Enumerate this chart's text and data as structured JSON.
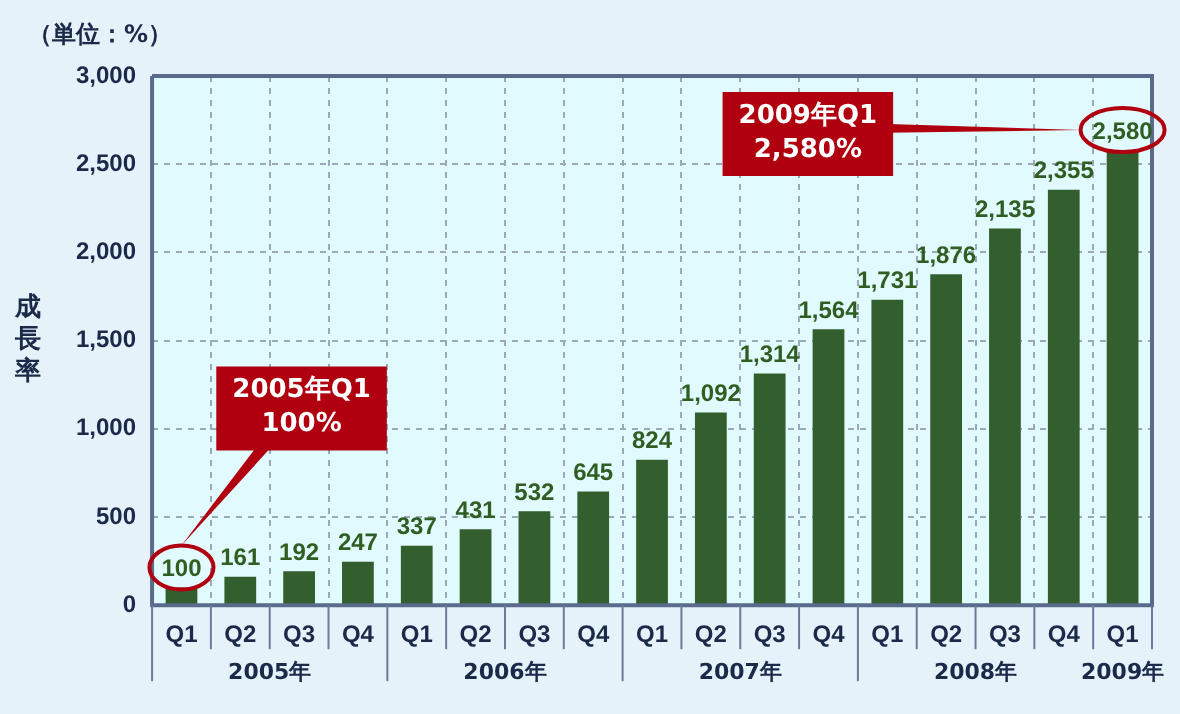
{
  "chart_data": {
    "type": "bar",
    "ylabel": "成長率",
    "categories": [
      "Q1",
      "Q2",
      "Q3",
      "Q4",
      "Q1",
      "Q2",
      "Q3",
      "Q4",
      "Q1",
      "Q2",
      "Q3",
      "Q4",
      "Q1",
      "Q2",
      "Q3",
      "Q4",
      "Q1"
    ],
    "values": [
      100,
      161,
      192,
      247,
      337,
      431,
      532,
      645,
      824,
      1092,
      1314,
      1564,
      1731,
      1876,
      2135,
      2355,
      2580
    ],
    "color": "#335e2e",
    "ylim": [
      0,
      3000
    ],
    "yticks": [
      {
        "value": 0,
        "label": "0"
      },
      {
        "value": 500,
        "label": "500"
      },
      {
        "value": 1000,
        "label": "1,000"
      },
      {
        "value": 1500,
        "label": "1,500"
      },
      {
        "value": 2000,
        "label": "2,000"
      },
      {
        "value": 2500,
        "label": "2,500"
      },
      {
        "value": 3000,
        "label": "3,000"
      }
    ],
    "grid": true,
    "value_labels": [
      "100",
      "161",
      "192",
      "247",
      "337",
      "431",
      "532",
      "645",
      "824",
      "1,092",
      "1,314",
      "1,564",
      "1,731",
      "1,876",
      "2,135",
      "2,355",
      "2,580"
    ],
    "annotations": [
      "（単位：%）",
      "2005年",
      "2006年",
      "2007年",
      "2008年",
      "2009年",
      "2005年Q1\n100%",
      "2009年Q1\n2,580%"
    ]
  }
}
